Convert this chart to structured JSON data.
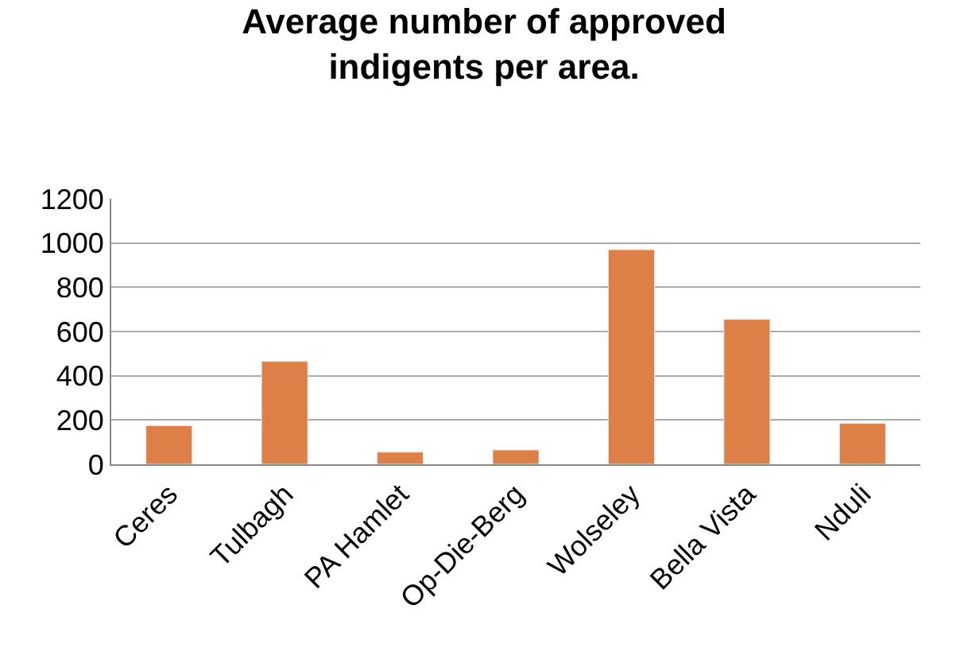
{
  "chart_data": {
    "type": "bar",
    "title": "Average number of approved indigents per area.",
    "categories": [
      "Ceres",
      "Tulbagh",
      "PA Hamlet",
      "Op-Die-Berg",
      "Wolseley",
      "Bella Vista",
      "Nduli"
    ],
    "values": [
      175,
      465,
      55,
      65,
      970,
      655,
      185
    ],
    "color": "#dd8047",
    "ylim": [
      0,
      1200
    ],
    "yticks": [
      0,
      200,
      400,
      600,
      800,
      1000,
      1200
    ],
    "grid": "y"
  }
}
